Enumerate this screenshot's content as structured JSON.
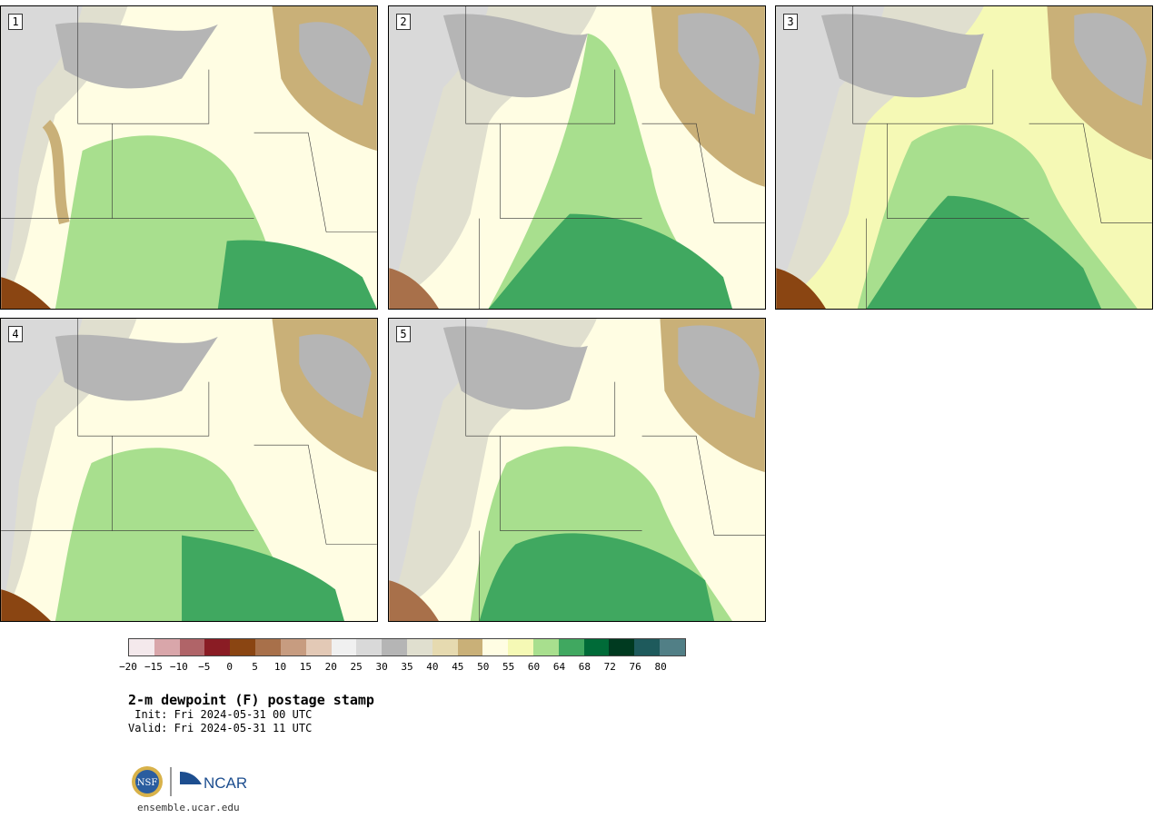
{
  "product": {
    "title": "2-m dewpoint (F) postage stamp",
    "init": " Init: Fri 2024-05-31 00 UTC",
    "valid": "Valid: Fri 2024-05-31 11 UTC",
    "url": "ensemble.ucar.edu",
    "org_logo_text": "NCAR",
    "nsf_logo_text": "NSF"
  },
  "members": [
    {
      "label": "1"
    },
    {
      "label": "2"
    },
    {
      "label": "3"
    },
    {
      "label": "4"
    },
    {
      "label": "5"
    }
  ],
  "colorbar": {
    "colors": [
      "#f4e9ec",
      "#d9a6aa",
      "#b06468",
      "#8a1c24",
      "#8a4512",
      "#a8704a",
      "#c79c80",
      "#e3c9b6",
      "#f0f0f0",
      "#d9d9d9",
      "#b5b5b5",
      "#e0dfcf",
      "#e6dab0",
      "#c9b078",
      "#fffde3",
      "#f5f9b5",
      "#a8df8e",
      "#40a860",
      "#006b38",
      "#003a20",
      "#1e5a5c",
      "#517f86"
    ],
    "tick_labels": [
      "−20",
      "−15",
      "−10",
      "−5",
      "0",
      "5",
      "10",
      "15",
      "20",
      "25",
      "30",
      "35",
      "40",
      "45",
      "50",
      "55",
      "60",
      "64",
      "68",
      "72",
      "76",
      "80"
    ]
  }
}
